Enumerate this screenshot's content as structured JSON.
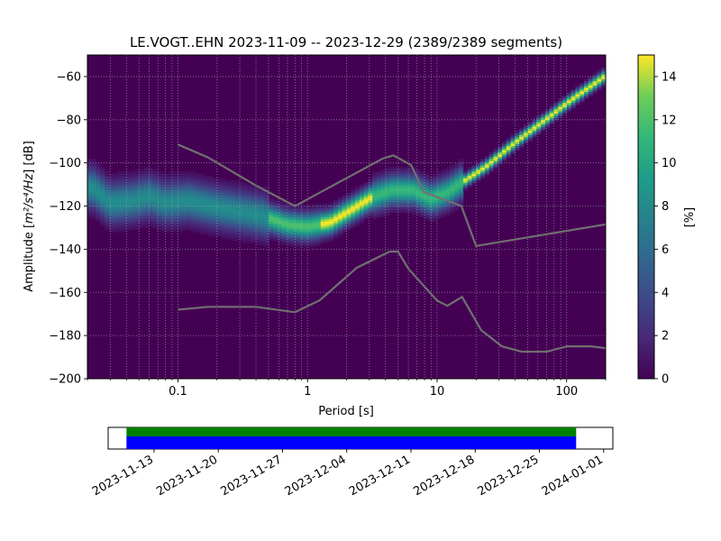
{
  "chart_data": {
    "type": "heatmap",
    "title": "LE.VOGT..EHN   2023-11-09 -- 2023-12-29  (2389/2389 segments)",
    "xlabel": "Period [s]",
    "ylabel_prefix": "Amplitude [",
    "ylabel_unit": "m²/s⁴/Hz",
    "ylabel_suffix": "] [dB]",
    "xscale": "log",
    "xlim": [
      0.02,
      200
    ],
    "ylim": [
      -200,
      -50
    ],
    "x_tick_values": [
      0.1,
      1,
      10,
      100
    ],
    "x_tick_labels": [
      "0.1",
      "1",
      "10",
      "100"
    ],
    "y_ticks": [
      -60,
      -80,
      -100,
      -120,
      -140,
      -160,
      -180,
      -200
    ],
    "grid": true,
    "colormap": "viridis",
    "colorbar": {
      "label": "[%]",
      "min": 0,
      "max": 15,
      "ticks": [
        0,
        2,
        4,
        6,
        8,
        10,
        12,
        14
      ]
    },
    "ppsd_mode": [
      [
        0.022,
        -112
      ],
      [
        0.03,
        -119
      ],
      [
        0.045,
        -118
      ],
      [
        0.06,
        -116
      ],
      [
        0.08,
        -119
      ],
      [
        0.12,
        -118
      ],
      [
        0.2,
        -121
      ],
      [
        0.3,
        -123
      ],
      [
        0.45,
        -125
      ],
      [
        0.7,
        -129
      ],
      [
        1.0,
        -130
      ],
      [
        1.5,
        -128
      ],
      [
        2.2,
        -122
      ],
      [
        3.2,
        -116
      ],
      [
        4.5,
        -113
      ],
      [
        6.5,
        -113
      ],
      [
        9,
        -117
      ],
      [
        12,
        -114
      ],
      [
        16,
        -109
      ],
      [
        24,
        -102
      ],
      [
        40,
        -91
      ],
      [
        70,
        -80
      ],
      [
        110,
        -71
      ],
      [
        200,
        -60
      ]
    ],
    "noise_models": {
      "high": [
        [
          0.1,
          -91.5
        ],
        [
          0.17,
          -97.4
        ],
        [
          0.4,
          -110.5
        ],
        [
          0.8,
          -120
        ],
        [
          3.8,
          -98
        ],
        [
          4.6,
          -96.5
        ],
        [
          6.3,
          -101
        ],
        [
          7.9,
          -113.5
        ],
        [
          15.4,
          -120
        ],
        [
          20,
          -138.5
        ],
        [
          354.8,
          -126
        ]
      ],
      "low": [
        [
          0.1,
          -168
        ],
        [
          0.17,
          -166.7
        ],
        [
          0.4,
          -166.7
        ],
        [
          0.8,
          -169.2
        ],
        [
          1.24,
          -163.7
        ],
        [
          2.4,
          -148.6
        ],
        [
          4.3,
          -141.1
        ],
        [
          5,
          -141.1
        ],
        [
          6,
          -149
        ],
        [
          10,
          -163.8
        ],
        [
          12,
          -166.2
        ],
        [
          15.6,
          -162.1
        ],
        [
          21.9,
          -177.5
        ],
        [
          31.6,
          -185
        ],
        [
          45,
          -187.5
        ],
        [
          70,
          -187.5
        ],
        [
          101,
          -185
        ],
        [
          154,
          -185
        ],
        [
          328,
          -187.5
        ]
      ]
    },
    "coverage": {
      "start": "2023-11-10",
      "end": "2023-12-29",
      "axis_start": "2023-11-08",
      "axis_end": "2024-01-02",
      "tick_labels": [
        "2023-11-13",
        "2023-11-20",
        "2023-11-27",
        "2023-12-04",
        "2023-12-11",
        "2023-12-18",
        "2023-12-25",
        "2024-01-01"
      ],
      "colors": {
        "top": "#008000",
        "bottom": "#0000ff"
      }
    }
  }
}
